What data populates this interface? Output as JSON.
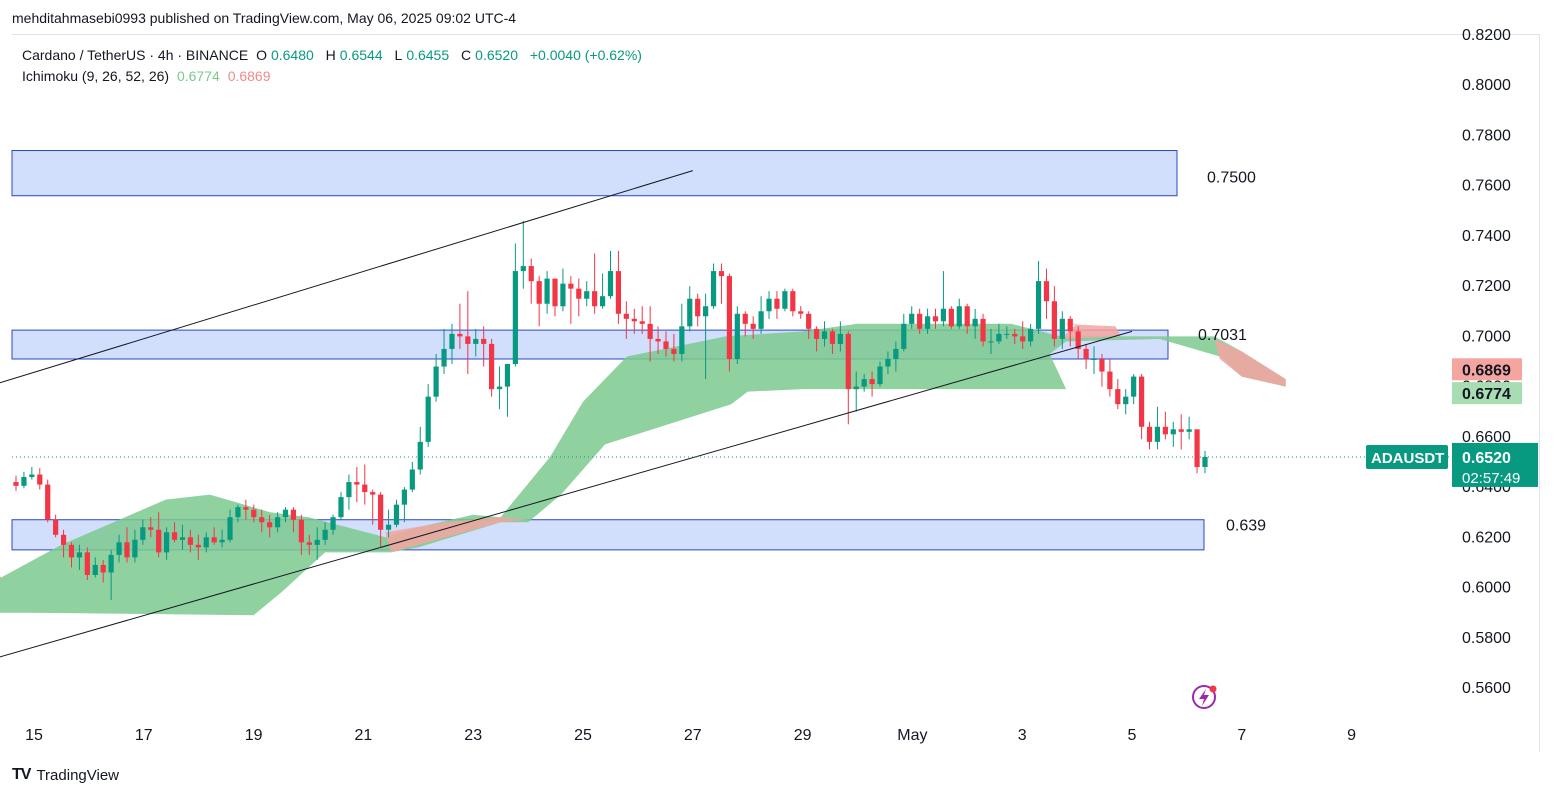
{
  "header": {
    "publisher": "mehditahmasebi0993 published on TradingView.com, May 06, 2025 09:02 UTC-4"
  },
  "legend": {
    "symbol": "Cardano / TetherUS · 4h · BINANCE",
    "open_label": "O",
    "open": "0.6480",
    "high_label": "H",
    "high": "0.6544",
    "low_label": "L",
    "low": "0.6455",
    "close_label": "C",
    "close": "0.6520",
    "change": "+0.0040 (+0.62%)",
    "indicator": "Ichimoku (9, 26, 52, 26)",
    "ind_val1": "0.6774",
    "ind_val2": "0.6869"
  },
  "footer": {
    "logo_text": "TradingView"
  },
  "colors": {
    "up": "#089981",
    "down": "#f23645",
    "cloud_bull": "#7bc98e",
    "cloud_bear": "#f5a5a0",
    "zone": "#c9d8fb",
    "zone_border": "#2b46c9"
  },
  "chart_data": {
    "type": "candlestick",
    "ylim": [
      0.55,
      0.825
    ],
    "y_ticks": [
      "0.5600",
      "0.5800",
      "0.6000",
      "0.6200",
      "0.6400",
      "0.6600",
      "0.6800",
      "0.7000",
      "0.7200",
      "0.7400",
      "0.7600",
      "0.7800",
      "0.8000",
      "0.8200"
    ],
    "x_ticks": [
      "15",
      "17",
      "19",
      "21",
      "23",
      "25",
      "27",
      "29",
      "May",
      "3",
      "5",
      "7",
      "9"
    ],
    "last_price": {
      "symbol": "ADAUSDT",
      "price": "0.6520",
      "countdown": "02:57:49"
    },
    "ichimoku_labels": {
      "senkou_b": "0.6869",
      "senkou_a": "0.6774"
    },
    "zones": [
      {
        "top": 0.774,
        "bottom": 0.756,
        "label": "0.7500"
      },
      {
        "top": 0.7025,
        "bottom": 0.691,
        "label": "0.7031"
      },
      {
        "top": 0.627,
        "bottom": 0.615,
        "label": "0.639"
      }
    ],
    "trendlines": [
      {
        "start": [
          "2025-04-14 00:00",
          0.679
        ],
        "end": [
          "2025-04-27 00:00",
          0.766
        ]
      },
      {
        "start": [
          "2025-04-14 00:00",
          0.57
        ],
        "end": [
          "2025-05-05 00:00",
          0.702
        ]
      }
    ],
    "cloud_top": [
      [
        -0.02,
        0.604
      ],
      [
        0.4,
        0.604
      ],
      [
        1.5,
        0.617
      ],
      [
        3.4,
        0.635
      ],
      [
        4.2,
        0.637
      ],
      [
        5.3,
        0.63
      ],
      [
        6.0,
        0.628
      ],
      [
        7.4,
        0.62
      ],
      [
        8.0,
        0.624
      ],
      [
        9.0,
        0.629
      ],
      [
        9.5,
        0.628
      ],
      [
        10.4,
        0.652
      ],
      [
        11.0,
        0.674
      ],
      [
        11.8,
        0.692
      ],
      [
        13.6,
        0.7
      ],
      [
        15.0,
        0.702
      ],
      [
        16.0,
        0.705
      ],
      [
        18.8,
        0.705
      ],
      [
        19.7,
        0.7
      ],
      [
        22.5,
        0.7
      ],
      [
        23.0,
        0.694
      ],
      [
        23.8,
        0.683
      ]
    ],
    "cloud_bottom": [
      [
        -0.02,
        0.589
      ],
      [
        0.4,
        0.59
      ],
      [
        0.9,
        0.59
      ],
      [
        5.0,
        0.589
      ],
      [
        5.5,
        0.598
      ],
      [
        6.3,
        0.614
      ],
      [
        7.5,
        0.614
      ],
      [
        8.0,
        0.616
      ],
      [
        9.5,
        0.626
      ],
      [
        10.0,
        0.626
      ],
      [
        10.6,
        0.637
      ],
      [
        11.4,
        0.657
      ],
      [
        13.7,
        0.673
      ],
      [
        14.0,
        0.678
      ],
      [
        15.0,
        0.679
      ],
      [
        15.5,
        0.679
      ],
      [
        16.0,
        0.679
      ],
      [
        17.8,
        0.679
      ],
      [
        19.5,
        0.679
      ],
      [
        19.8,
        0.679
      ],
      [
        19.5,
        0.693
      ],
      [
        19.8,
        0.698
      ],
      [
        21.5,
        0.699
      ],
      [
        22.6,
        0.692
      ],
      [
        23.0,
        0.684
      ],
      [
        23.8,
        0.68
      ]
    ],
    "cloud_bear_segments": [
      [
        [
          -0.02,
          0.61
        ],
        [
          0.2,
          0.61
        ],
        [
          0.4,
          0.604
        ],
        [
          -0.02,
          0.589
        ]
      ],
      [
        [
          7.4,
          0.622
        ],
        [
          8.5,
          0.626
        ],
        [
          9.5,
          0.628
        ],
        [
          10.0,
          0.627
        ],
        [
          9.5,
          0.626
        ],
        [
          7.5,
          0.614
        ]
      ],
      [
        [
          20.0,
          0.705
        ],
        [
          19.6,
          0.705
        ],
        [
          20.7,
          0.704
        ],
        [
          20.8,
          0.7
        ],
        [
          19.7,
          0.699
        ]
      ],
      [
        [
          22.5,
          0.699
        ],
        [
          23.0,
          0.694
        ],
        [
          23.8,
          0.683
        ],
        [
          23.8,
          0.68
        ],
        [
          23.0,
          0.684
        ],
        [
          22.6,
          0.691
        ]
      ]
    ],
    "candles": [
      [
        0.642,
        0.6405,
        0.6385,
        0.6445
      ],
      [
        0.6405,
        0.644,
        0.6395,
        0.646
      ],
      [
        0.644,
        0.645,
        0.643,
        0.648
      ],
      [
        0.645,
        0.641,
        0.639,
        0.6475
      ],
      [
        0.641,
        0.627,
        0.626,
        0.643
      ],
      [
        0.627,
        0.621,
        0.62,
        0.629
      ],
      [
        0.621,
        0.617,
        0.612,
        0.623
      ],
      [
        0.617,
        0.612,
        0.608,
        0.618
      ],
      [
        0.612,
        0.614,
        0.607,
        0.617
      ],
      [
        0.614,
        0.605,
        0.603,
        0.616
      ],
      [
        0.605,
        0.609,
        0.604,
        0.612
      ],
      [
        0.609,
        0.606,
        0.602,
        0.611
      ],
      [
        0.606,
        0.613,
        0.595,
        0.615
      ],
      [
        0.613,
        0.618,
        0.61,
        0.621
      ],
      [
        0.618,
        0.612,
        0.61,
        0.624
      ],
      [
        0.612,
        0.619,
        0.61,
        0.623
      ],
      [
        0.619,
        0.624,
        0.617,
        0.627
      ],
      [
        0.624,
        0.623,
        0.62,
        0.628
      ],
      [
        0.623,
        0.614,
        0.612,
        0.63
      ],
      [
        0.614,
        0.622,
        0.611,
        0.624
      ],
      [
        0.622,
        0.619,
        0.618,
        0.626
      ],
      [
        0.619,
        0.62,
        0.615,
        0.625
      ],
      [
        0.62,
        0.617,
        0.614,
        0.623
      ],
      [
        0.617,
        0.616,
        0.611,
        0.621
      ],
      [
        0.616,
        0.62,
        0.614,
        0.622
      ],
      [
        0.62,
        0.618,
        0.617,
        0.624
      ],
      [
        0.618,
        0.619,
        0.616,
        0.623
      ],
      [
        0.619,
        0.628,
        0.618,
        0.631
      ],
      [
        0.628,
        0.632,
        0.626,
        0.633
      ],
      [
        0.632,
        0.631,
        0.627,
        0.635
      ],
      [
        0.631,
        0.628,
        0.626,
        0.633
      ],
      [
        0.628,
        0.626,
        0.622,
        0.631
      ],
      [
        0.626,
        0.624,
        0.62,
        0.629
      ],
      [
        0.624,
        0.628,
        0.622,
        0.63
      ],
      [
        0.628,
        0.631,
        0.626,
        0.632
      ],
      [
        0.631,
        0.627,
        0.622,
        0.632
      ],
      [
        0.627,
        0.618,
        0.613,
        0.629
      ],
      [
        0.618,
        0.617,
        0.613,
        0.621
      ],
      [
        0.617,
        0.619,
        0.611,
        0.624
      ],
      [
        0.619,
        0.623,
        0.617,
        0.626
      ],
      [
        0.623,
        0.628,
        0.621,
        0.629
      ],
      [
        0.628,
        0.636,
        0.627,
        0.638
      ],
      [
        0.636,
        0.642,
        0.631,
        0.645
      ],
      [
        0.642,
        0.641,
        0.634,
        0.648
      ],
      [
        0.641,
        0.638,
        0.633,
        0.649
      ],
      [
        0.638,
        0.637,
        0.625,
        0.639
      ],
      [
        0.637,
        0.623,
        0.616,
        0.638
      ],
      [
        0.623,
        0.625,
        0.62,
        0.631
      ],
      [
        0.625,
        0.633,
        0.624,
        0.635
      ],
      [
        0.633,
        0.639,
        0.626,
        0.64
      ],
      [
        0.639,
        0.647,
        0.638,
        0.65
      ],
      [
        0.647,
        0.658,
        0.645,
        0.664
      ],
      [
        0.658,
        0.676,
        0.656,
        0.681
      ],
      [
        0.676,
        0.688,
        0.674,
        0.693
      ],
      [
        0.688,
        0.695,
        0.685,
        0.703
      ],
      [
        0.695,
        0.701,
        0.689,
        0.705
      ],
      [
        0.701,
        0.7,
        0.695,
        0.713
      ],
      [
        0.7,
        0.697,
        0.685,
        0.718
      ],
      [
        0.697,
        0.699,
        0.692,
        0.703
      ],
      [
        0.699,
        0.697,
        0.688,
        0.704
      ],
      [
        0.697,
        0.679,
        0.676,
        0.699
      ],
      [
        0.679,
        0.68,
        0.671,
        0.688
      ],
      [
        0.68,
        0.689,
        0.668,
        0.689
      ],
      [
        0.689,
        0.726,
        0.688,
        0.737
      ],
      [
        0.726,
        0.728,
        0.719,
        0.746
      ],
      [
        0.728,
        0.722,
        0.713,
        0.731
      ],
      [
        0.722,
        0.713,
        0.704,
        0.724
      ],
      [
        0.713,
        0.723,
        0.709,
        0.726
      ],
      [
        0.723,
        0.712,
        0.708,
        0.723
      ],
      [
        0.712,
        0.721,
        0.71,
        0.727
      ],
      [
        0.721,
        0.719,
        0.705,
        0.724
      ],
      [
        0.719,
        0.715,
        0.708,
        0.723
      ],
      [
        0.715,
        0.718,
        0.712,
        0.722
      ],
      [
        0.718,
        0.712,
        0.709,
        0.733
      ],
      [
        0.712,
        0.716,
        0.711,
        0.725
      ],
      [
        0.716,
        0.726,
        0.715,
        0.734
      ],
      [
        0.726,
        0.709,
        0.705,
        0.734
      ],
      [
        0.709,
        0.707,
        0.699,
        0.714
      ],
      [
        0.707,
        0.706,
        0.701,
        0.711
      ],
      [
        0.706,
        0.705,
        0.701,
        0.712
      ],
      [
        0.705,
        0.699,
        0.69,
        0.712
      ],
      [
        0.699,
        0.698,
        0.693,
        0.704
      ],
      [
        0.698,
        0.695,
        0.692,
        0.702
      ],
      [
        0.695,
        0.693,
        0.69,
        0.701
      ],
      [
        0.693,
        0.704,
        0.69,
        0.713
      ],
      [
        0.704,
        0.715,
        0.702,
        0.72
      ],
      [
        0.715,
        0.708,
        0.704,
        0.717
      ],
      [
        0.708,
        0.712,
        0.683,
        0.717
      ],
      [
        0.712,
        0.726,
        0.711,
        0.729
      ],
      [
        0.726,
        0.724,
        0.713,
        0.729
      ],
      [
        0.724,
        0.691,
        0.686,
        0.725
      ],
      [
        0.691,
        0.709,
        0.689,
        0.712
      ],
      [
        0.709,
        0.705,
        0.7,
        0.71
      ],
      [
        0.705,
        0.703,
        0.699,
        0.708
      ],
      [
        0.703,
        0.71,
        0.701,
        0.716
      ],
      [
        0.71,
        0.715,
        0.707,
        0.718
      ],
      [
        0.715,
        0.711,
        0.707,
        0.718
      ],
      [
        0.711,
        0.718,
        0.71,
        0.719
      ],
      [
        0.718,
        0.71,
        0.708,
        0.719
      ],
      [
        0.71,
        0.709,
        0.707,
        0.712
      ],
      [
        0.709,
        0.703,
        0.699,
        0.71
      ],
      [
        0.703,
        0.699,
        0.694,
        0.704
      ],
      [
        0.699,
        0.702,
        0.696,
        0.706
      ],
      [
        0.702,
        0.697,
        0.693,
        0.703
      ],
      [
        0.697,
        0.701,
        0.694,
        0.706
      ],
      [
        0.701,
        0.679,
        0.665,
        0.702
      ],
      [
        0.679,
        0.68,
        0.67,
        0.686
      ],
      [
        0.68,
        0.683,
        0.678,
        0.685
      ],
      [
        0.683,
        0.681,
        0.676,
        0.686
      ],
      [
        0.681,
        0.688,
        0.68,
        0.69
      ],
      [
        0.688,
        0.691,
        0.685,
        0.694
      ],
      [
        0.691,
        0.695,
        0.686,
        0.698
      ],
      [
        0.695,
        0.705,
        0.694,
        0.709
      ],
      [
        0.705,
        0.709,
        0.703,
        0.712
      ],
      [
        0.709,
        0.703,
        0.701,
        0.711
      ],
      [
        0.703,
        0.708,
        0.701,
        0.711
      ],
      [
        0.708,
        0.706,
        0.703,
        0.711
      ],
      [
        0.706,
        0.711,
        0.704,
        0.726
      ],
      [
        0.711,
        0.704,
        0.703,
        0.712
      ],
      [
        0.704,
        0.712,
        0.703,
        0.715
      ],
      [
        0.712,
        0.704,
        0.701,
        0.713
      ],
      [
        0.704,
        0.707,
        0.699,
        0.711
      ],
      [
        0.707,
        0.698,
        0.696,
        0.709
      ],
      [
        0.698,
        0.698,
        0.693,
        0.703
      ],
      [
        0.698,
        0.701,
        0.697,
        0.705
      ],
      [
        0.701,
        0.701,
        0.699,
        0.704
      ],
      [
        0.701,
        0.7,
        0.697,
        0.703
      ],
      [
        0.7,
        0.698,
        0.695,
        0.706
      ],
      [
        0.698,
        0.703,
        0.696,
        0.705
      ],
      [
        0.703,
        0.722,
        0.701,
        0.73
      ],
      [
        0.722,
        0.714,
        0.707,
        0.727
      ],
      [
        0.714,
        0.699,
        0.696,
        0.72
      ],
      [
        0.699,
        0.707,
        0.695,
        0.71
      ],
      [
        0.707,
        0.702,
        0.696,
        0.708
      ],
      [
        0.702,
        0.695,
        0.691,
        0.704
      ],
      [
        0.695,
        0.691,
        0.687,
        0.697
      ],
      [
        0.691,
        0.691,
        0.685,
        0.696
      ],
      [
        0.691,
        0.686,
        0.68,
        0.693
      ],
      [
        0.686,
        0.679,
        0.676,
        0.691
      ],
      [
        0.679,
        0.673,
        0.671,
        0.683
      ],
      [
        0.673,
        0.676,
        0.669,
        0.679
      ],
      [
        0.676,
        0.684,
        0.673,
        0.685
      ],
      [
        0.684,
        0.664,
        0.659,
        0.685
      ],
      [
        0.664,
        0.658,
        0.655,
        0.666
      ],
      [
        0.658,
        0.664,
        0.655,
        0.672
      ],
      [
        0.664,
        0.661,
        0.659,
        0.67
      ],
      [
        0.661,
        0.663,
        0.656,
        0.666
      ],
      [
        0.663,
        0.662,
        0.655,
        0.669
      ],
      [
        0.662,
        0.663,
        0.659,
        0.668
      ],
      [
        0.663,
        0.648,
        0.6455,
        0.663
      ],
      [
        0.648,
        0.652,
        0.6455,
        0.6544
      ]
    ]
  }
}
